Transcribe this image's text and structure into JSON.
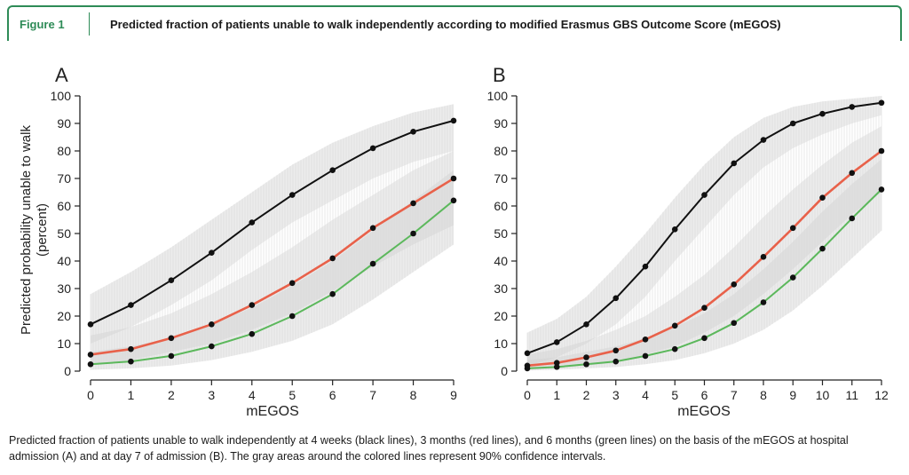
{
  "figure": {
    "label": "Figure 1",
    "title": "Predicted fraction of patients unable to walk independently according to modified Erasmus GBS Outcome Score (mEGOS)",
    "caption": "Predicted fraction of patients unable to walk independently at 4 weeks (black lines), 3 months (red lines), and 6 months (green lines) on the basis of the mEGOS at hospital admission (A) and at day 7 of admission (B). The gray areas around the colored lines represent 90% confidence intervals."
  },
  "chart_data": [
    {
      "type": "line",
      "panel": "A",
      "xlabel": "mEGOS",
      "ylabel": "Predicted probability unable to walk (percent)",
      "ylabel_lines": [
        "Predicted probability unable to walk",
        "(percent)"
      ],
      "xlim": [
        0,
        9
      ],
      "ylim": [
        0,
        100
      ],
      "xticks": [
        0,
        1,
        2,
        3,
        4,
        5,
        6,
        7,
        8,
        9
      ],
      "yticks": [
        0,
        10,
        20,
        30,
        40,
        50,
        60,
        70,
        80,
        90,
        100
      ],
      "x": [
        0,
        1,
        2,
        3,
        4,
        5,
        6,
        7,
        8,
        9
      ],
      "series": [
        {
          "color": "#111111",
          "values": [
            17,
            24,
            33,
            43,
            54,
            64,
            73,
            81,
            87,
            91
          ],
          "ci_lower": [
            10,
            16,
            24,
            33,
            44,
            54,
            62,
            70,
            76,
            80
          ],
          "ci_upper": [
            28,
            36,
            45,
            55,
            65,
            75,
            83,
            89,
            94,
            97
          ]
        },
        {
          "color": "#e8614a",
          "values": [
            6,
            8,
            12,
            17,
            24,
            32,
            41,
            52,
            61,
            70
          ],
          "ci_lower": [
            2,
            4,
            7,
            10,
            15,
            21,
            29,
            38,
            46,
            53
          ],
          "ci_upper": [
            13,
            16,
            21,
            28,
            36,
            45,
            55,
            64,
            73,
            80
          ]
        },
        {
          "color": "#5cb85c",
          "values": [
            2.5,
            3.5,
            5.5,
            9,
            13.5,
            20,
            28,
            39,
            50,
            62
          ],
          "ci_lower": [
            0.5,
            1,
            2,
            4,
            7,
            11,
            17,
            26,
            36,
            46
          ],
          "ci_upper": [
            7,
            9,
            12,
            17,
            23,
            31,
            40,
            51,
            62,
            73
          ]
        }
      ]
    },
    {
      "type": "line",
      "panel": "B",
      "xlabel": "mEGOS",
      "xlim": [
        0,
        12
      ],
      "ylim": [
        0,
        100
      ],
      "xticks": [
        0,
        1,
        2,
        3,
        4,
        5,
        6,
        7,
        8,
        9,
        10,
        11,
        12
      ],
      "yticks": [
        0,
        10,
        20,
        30,
        40,
        50,
        60,
        70,
        80,
        90,
        100
      ],
      "x": [
        0,
        1,
        2,
        3,
        4,
        5,
        6,
        7,
        8,
        9,
        10,
        11,
        12
      ],
      "series": [
        {
          "color": "#111111",
          "values": [
            6.5,
            10.5,
            17,
            26.5,
            38,
            51.5,
            64,
            75.5,
            84,
            90,
            93.5,
            96,
            97.5
          ],
          "ci_lower": [
            2,
            5,
            10,
            17,
            27,
            40,
            52,
            64,
            74,
            81,
            86,
            90,
            93
          ],
          "ci_upper": [
            14,
            19,
            27,
            38,
            50,
            63,
            75,
            85,
            92,
            96,
            98,
            99,
            100
          ]
        },
        {
          "color": "#e8614a",
          "values": [
            2,
            3,
            5,
            7.5,
            11.5,
            16.5,
            23,
            31.5,
            41.5,
            52,
            63,
            72,
            80
          ],
          "ci_lower": [
            0.5,
            1,
            2,
            3,
            6,
            9,
            14,
            20,
            28,
            37,
            47,
            57,
            65
          ],
          "ci_upper": [
            6,
            8,
            11,
            15,
            20,
            27,
            35,
            45,
            56,
            66,
            75,
            83,
            89
          ]
        },
        {
          "color": "#5cb85c",
          "values": [
            1,
            1.5,
            2.5,
            3.5,
            5.5,
            8,
            12,
            17.5,
            25,
            34,
            44.5,
            55.5,
            66
          ],
          "ci_lower": [
            0.2,
            0.5,
            1,
            1.5,
            2.5,
            4,
            6.5,
            10,
            15,
            22,
            31,
            41,
            51
          ],
          "ci_upper": [
            4,
            5,
            7,
            9,
            12,
            16,
            21,
            28,
            37,
            47,
            58,
            68,
            77
          ]
        }
      ]
    }
  ]
}
